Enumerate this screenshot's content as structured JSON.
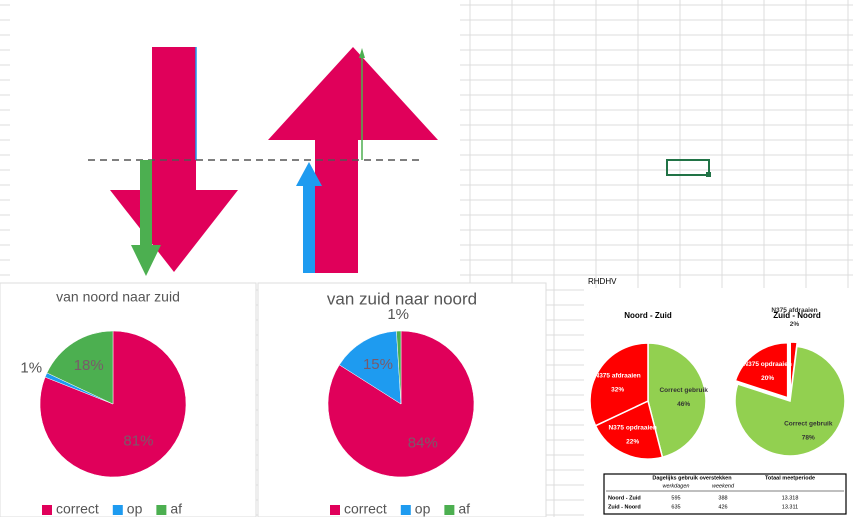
{
  "chart_data": [
    {
      "type": "pie",
      "title": "van noord naar zuid",
      "categories": [
        "correct",
        "op",
        "af"
      ],
      "values": [
        81,
        1,
        18
      ],
      "value_labels": [
        "81%",
        "1%",
        "18%"
      ],
      "colors": [
        "#e0005a",
        "#1e9bf0",
        "#4caf50"
      ],
      "legend": "bottom"
    },
    {
      "type": "pie",
      "title": "van zuid naar noord",
      "categories": [
        "correct",
        "op",
        "af"
      ],
      "values": [
        84,
        15,
        1
      ],
      "value_labels": [
        "84%",
        "15%",
        "1%"
      ],
      "colors": [
        "#e0005a",
        "#1e9bf0",
        "#4caf50"
      ],
      "legend": "bottom"
    },
    {
      "type": "pie",
      "title": "Noord - Zuid",
      "categories": [
        "Correct gebruik",
        "N375 opdraaien",
        "N375 afdraaien"
      ],
      "values": [
        46,
        22,
        32
      ],
      "value_labels": [
        "46%",
        "22%",
        "32%"
      ],
      "colors": [
        "#92d050",
        "#ff0000",
        "#ff0000"
      ]
    },
    {
      "type": "pie",
      "title": "Zuid - Noord",
      "categories": [
        "N375 afdraaien",
        "Correct gebruik",
        "N375 opdraaien"
      ],
      "values": [
        2,
        78,
        20
      ],
      "value_labels": [
        "2%",
        "78%",
        "20%"
      ],
      "colors": [
        "#ff0000",
        "#92d050",
        "#ff0000"
      ]
    }
  ],
  "label": "RHDHV",
  "table": {
    "header": [
      "Dagelijks gebruik overstekken",
      "Totaal meetperiode"
    ],
    "subheader": [
      "werkdagen",
      "weekend"
    ],
    "rows": [
      [
        "Noord - Zuid",
        "595",
        "388",
        "13.318"
      ],
      [
        "Zuid - Noord",
        "635",
        "426",
        "13.311"
      ]
    ]
  }
}
